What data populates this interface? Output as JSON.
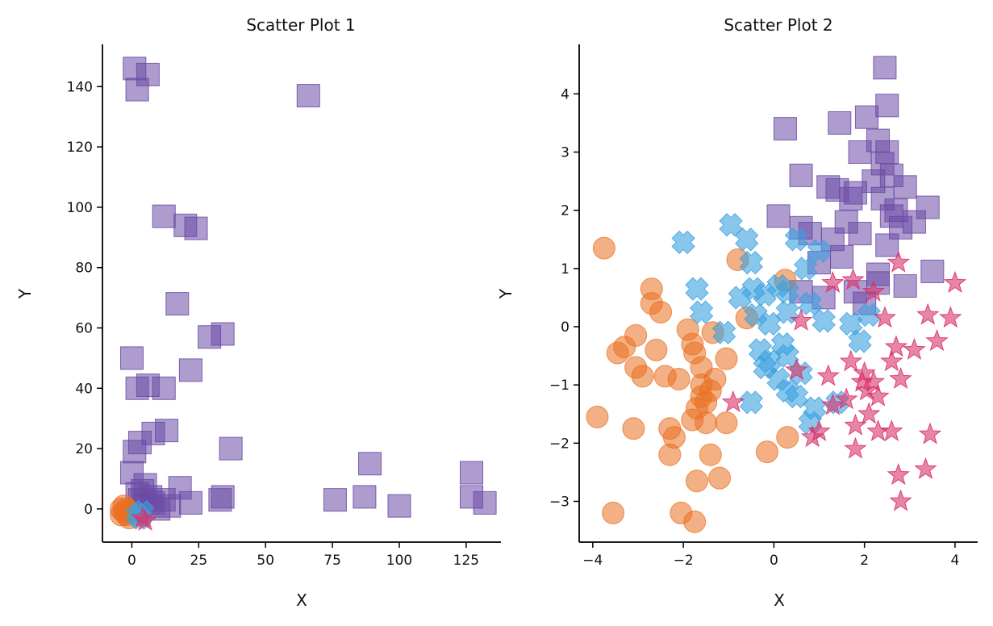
{
  "colors": {
    "square": "#6b4aa5",
    "circle": "#ea7020",
    "cross": "#3ba0e0",
    "star": "#d8346a"
  },
  "chart_data": [
    {
      "type": "scatter",
      "title": "Scatter Plot 1",
      "xlabel": "X",
      "ylabel": "Y",
      "xlim": [
        -11,
        138
      ],
      "ylim": [
        -11,
        154
      ],
      "xticks": [
        0,
        25,
        50,
        75,
        100,
        125
      ],
      "yticks": [
        0,
        20,
        40,
        60,
        80,
        100,
        120,
        140
      ],
      "grid": false,
      "series": [
        {
          "marker": "square",
          "points": [
            [
              1,
              146
            ],
            [
              6,
              144
            ],
            [
              2,
              139
            ],
            [
              66,
              137
            ],
            [
              12,
              97
            ],
            [
              20,
              94
            ],
            [
              24,
              93
            ],
            [
              17,
              68
            ],
            [
              29,
              57
            ],
            [
              34,
              58
            ],
            [
              0,
              50
            ],
            [
              22,
              46
            ],
            [
              2,
              40
            ],
            [
              6,
              41
            ],
            [
              12,
              40
            ],
            [
              13,
              26
            ],
            [
              8,
              25
            ],
            [
              3,
              22
            ],
            [
              1,
              19
            ],
            [
              37,
              20
            ],
            [
              0,
              12
            ],
            [
              89,
              15
            ],
            [
              127,
              12
            ],
            [
              5,
              8
            ],
            [
              18,
              7
            ],
            [
              22,
              2
            ],
            [
              33,
              3
            ],
            [
              34,
              4
            ],
            [
              76,
              3
            ],
            [
              87,
              4
            ],
            [
              100,
              1
            ],
            [
              127,
              4
            ],
            [
              132,
              2
            ],
            [
              3,
              3
            ],
            [
              5,
              1
            ],
            [
              8,
              2
            ],
            [
              10,
              0
            ],
            [
              12,
              3
            ],
            [
              14,
              1
            ],
            [
              2,
              5
            ],
            [
              4,
              6
            ],
            [
              7,
              4
            ]
          ]
        },
        {
          "marker": "circle",
          "points": [
            [
              -3,
              -1
            ],
            [
              -2,
              0
            ],
            [
              -4,
              -2
            ],
            [
              -1,
              -3
            ],
            [
              -3,
              1
            ],
            [
              -2,
              -2
            ],
            [
              -4,
              0
            ],
            [
              -1,
              -1
            ]
          ]
        },
        {
          "marker": "cross",
          "points": [
            [
              3,
              -3
            ],
            [
              4,
              -1
            ],
            [
              2,
              -2
            ]
          ]
        },
        {
          "marker": "star",
          "points": [
            [
              5,
              -4
            ],
            [
              4,
              -3
            ]
          ]
        }
      ]
    },
    {
      "type": "scatter",
      "title": "Scatter Plot 2",
      "xlabel": "X",
      "ylabel": "Y",
      "xlim": [
        -4.3,
        4.5
      ],
      "ylim": [
        -3.7,
        4.85
      ],
      "xticks": [
        -4,
        -2,
        0,
        2,
        4
      ],
      "yticks": [
        -3,
        -2,
        -1,
        0,
        1,
        2,
        3,
        4
      ],
      "grid": false,
      "series": [
        {
          "marker": "square",
          "points": [
            [
              2.45,
              4.45
            ],
            [
              2.5,
              3.8
            ],
            [
              0.25,
              3.4
            ],
            [
              1.45,
              3.5
            ],
            [
              2.05,
              3.6
            ],
            [
              1.9,
              3.0
            ],
            [
              2.3,
              3.2
            ],
            [
              2.5,
              3.0
            ],
            [
              2.6,
              2.6
            ],
            [
              2.4,
              2.8
            ],
            [
              2.2,
              2.5
            ],
            [
              0.6,
              2.6
            ],
            [
              1.2,
              2.4
            ],
            [
              1.4,
              2.35
            ],
            [
              1.8,
              2.3
            ],
            [
              2.4,
              2.2
            ],
            [
              2.7,
              2.0
            ],
            [
              3.1,
              1.8
            ],
            [
              3.4,
              2.05
            ],
            [
              2.8,
              1.7
            ],
            [
              0.1,
              1.9
            ],
            [
              0.6,
              1.7
            ],
            [
              0.8,
              1.6
            ],
            [
              1.3,
              1.5
            ],
            [
              1.6,
              1.8
            ],
            [
              1.9,
              1.6
            ],
            [
              2.5,
              1.4
            ],
            [
              1.5,
              1.2
            ],
            [
              1.0,
              1.1
            ],
            [
              3.5,
              0.95
            ],
            [
              2.9,
              0.7
            ],
            [
              2.3,
              0.9
            ],
            [
              0.6,
              0.6
            ],
            [
              1.1,
              0.5
            ],
            [
              1.8,
              0.6
            ],
            [
              2.0,
              0.4
            ],
            [
              2.3,
              0.75
            ],
            [
              1.7,
              2.2
            ],
            [
              2.9,
              2.4
            ],
            [
              2.6,
              1.9
            ]
          ]
        },
        {
          "marker": "circle",
          "points": [
            [
              -3.75,
              1.35
            ],
            [
              -0.8,
              1.15
            ],
            [
              -2.7,
              0.65
            ],
            [
              -2.7,
              0.4
            ],
            [
              -2.5,
              0.25
            ],
            [
              0.25,
              0.8
            ],
            [
              -0.6,
              0.15
            ],
            [
              -3.05,
              -0.15
            ],
            [
              -3.3,
              -0.35
            ],
            [
              -3.45,
              -0.45
            ],
            [
              -2.6,
              -0.4
            ],
            [
              -1.9,
              -0.05
            ],
            [
              -1.35,
              -0.1
            ],
            [
              -1.8,
              -0.3
            ],
            [
              -1.75,
              -0.45
            ],
            [
              -1.05,
              -0.55
            ],
            [
              -3.05,
              -0.7
            ],
            [
              -2.9,
              -0.85
            ],
            [
              -2.4,
              -0.85
            ],
            [
              -2.1,
              -0.9
            ],
            [
              -1.6,
              -0.7
            ],
            [
              -1.3,
              -0.9
            ],
            [
              -1.4,
              -1.1
            ],
            [
              -1.6,
              -1.2
            ],
            [
              -1.5,
              -1.3
            ],
            [
              -1.7,
              -1.4
            ],
            [
              -3.9,
              -1.55
            ],
            [
              -3.1,
              -1.75
            ],
            [
              -2.3,
              -1.75
            ],
            [
              -2.2,
              -1.9
            ],
            [
              -1.8,
              -1.6
            ],
            [
              -1.5,
              -1.65
            ],
            [
              -1.05,
              -1.65
            ],
            [
              -0.15,
              -2.15
            ],
            [
              0.3,
              -1.9
            ],
            [
              -2.3,
              -2.2
            ],
            [
              -1.4,
              -2.2
            ],
            [
              -1.7,
              -2.65
            ],
            [
              -1.2,
              -2.6
            ],
            [
              -2.05,
              -3.2
            ],
            [
              -1.75,
              -3.35
            ],
            [
              -3.55,
              -3.2
            ],
            [
              -1.6,
              -1.0
            ]
          ]
        },
        {
          "marker": "cross",
          "points": [
            [
              -2.0,
              1.45
            ],
            [
              -0.95,
              1.75
            ],
            [
              -0.6,
              1.5
            ],
            [
              -0.5,
              1.1
            ],
            [
              -1.7,
              0.65
            ],
            [
              -0.75,
              0.5
            ],
            [
              -0.45,
              0.65
            ],
            [
              -0.2,
              0.55
            ],
            [
              0.1,
              0.7
            ],
            [
              0.3,
              0.6
            ],
            [
              0.7,
              1.0
            ],
            [
              0.5,
              1.5
            ],
            [
              -1.6,
              0.25
            ],
            [
              -0.4,
              0.2
            ],
            [
              -0.1,
              0.05
            ],
            [
              0.3,
              0.25
            ],
            [
              1.1,
              0.1
            ],
            [
              1.7,
              0.05
            ],
            [
              2.1,
              0.2
            ],
            [
              1.9,
              -0.25
            ],
            [
              -1.1,
              -0.1
            ],
            [
              -0.3,
              -0.4
            ],
            [
              -0.1,
              -0.6
            ],
            [
              0.3,
              -0.5
            ],
            [
              0.1,
              -0.9
            ],
            [
              0.3,
              -1.1
            ],
            [
              -0.5,
              -1.3
            ],
            [
              0.5,
              -1.2
            ],
            [
              0.9,
              -1.4
            ],
            [
              1.4,
              -1.3
            ],
            [
              0.8,
              -1.65
            ],
            [
              -0.2,
              -0.7
            ],
            [
              0.2,
              -0.3
            ],
            [
              0.6,
              -0.8
            ],
            [
              1.0,
              1.3
            ],
            [
              0.8,
              0.4
            ]
          ]
        },
        {
          "marker": "star",
          "points": [
            [
              2.75,
              1.1
            ],
            [
              4.0,
              0.75
            ],
            [
              1.75,
              0.8
            ],
            [
              2.2,
              0.6
            ],
            [
              0.6,
              0.1
            ],
            [
              1.3,
              0.75
            ],
            [
              3.4,
              0.2
            ],
            [
              3.9,
              0.15
            ],
            [
              2.45,
              0.15
            ],
            [
              2.7,
              -0.35
            ],
            [
              3.1,
              -0.4
            ],
            [
              3.6,
              -0.25
            ],
            [
              1.7,
              -0.6
            ],
            [
              2.0,
              -0.8
            ],
            [
              2.6,
              -0.6
            ],
            [
              2.8,
              -0.9
            ],
            [
              1.2,
              -0.85
            ],
            [
              2.2,
              -0.95
            ],
            [
              2.05,
              -1.1
            ],
            [
              2.3,
              -1.2
            ],
            [
              1.6,
              -1.25
            ],
            [
              1.3,
              -1.35
            ],
            [
              -0.9,
              -1.3
            ],
            [
              2.1,
              -1.5
            ],
            [
              1.8,
              -1.7
            ],
            [
              2.3,
              -1.8
            ],
            [
              2.6,
              -1.8
            ],
            [
              3.45,
              -1.85
            ],
            [
              1.0,
              -1.8
            ],
            [
              0.85,
              -1.9
            ],
            [
              1.8,
              -2.1
            ],
            [
              2.75,
              -2.55
            ],
            [
              3.35,
              -2.45
            ],
            [
              2.8,
              -3.0
            ],
            [
              0.5,
              -0.75
            ],
            [
              1.95,
              -0.95
            ]
          ]
        }
      ]
    }
  ]
}
